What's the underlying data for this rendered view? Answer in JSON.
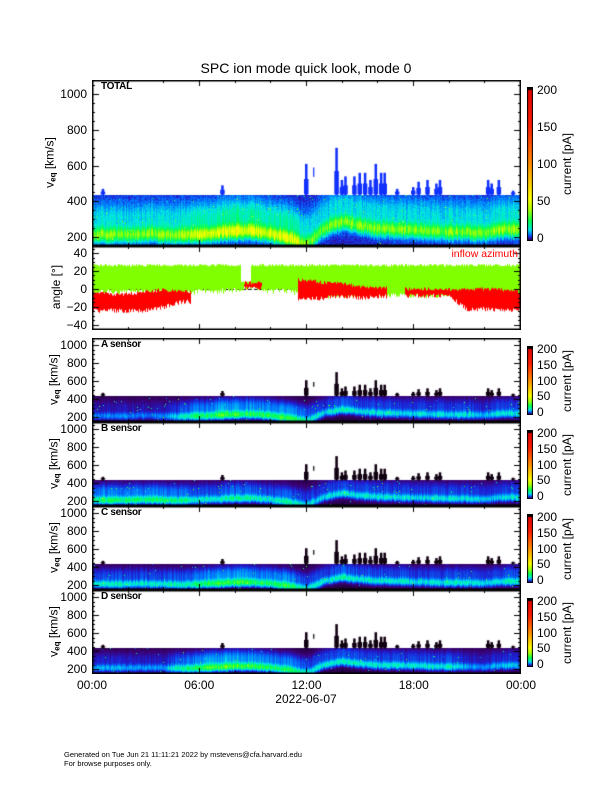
{
  "title": "SPC ion mode quick look, mode 0",
  "footer": {
    "line1": "Generated on Tue Jun 21 11:11:21 2022 by mstevens@cfa.harvard.edu",
    "line2": "For browse purposes only."
  },
  "colors": {
    "inflow_azimuth": "#ff0000",
    "second_angle": "#80ff00",
    "spikes_total": "#1030ff"
  },
  "chart_data": {
    "type": "heatmap",
    "x_axis": {
      "ticks": [
        "00:00",
        "06:00",
        "12:00",
        "18:00",
        "00:00"
      ],
      "tick_hours": [
        0,
        6,
        12,
        18,
        24
      ],
      "label": "2022-06-07",
      "range_hours": [
        0,
        24
      ]
    },
    "colorbar": {
      "label": "current [pA]",
      "ticks": [
        "0",
        "50",
        "100",
        "150",
        "200"
      ],
      "range": [
        0,
        200
      ]
    },
    "velocity_axis": {
      "label_main": "v",
      "label_sub": "eq",
      "label_unit": "[km/s]",
      "ticks": [
        "200",
        "400",
        "600",
        "800",
        "1000"
      ],
      "tick_values": [
        200,
        400,
        600,
        800,
        1000
      ]
    },
    "panels": [
      {
        "id": "total",
        "label": "TOTAL",
        "ylim": [
          150,
          1080
        ],
        "gain": [
          1,
          1,
          1,
          1,
          1,
          1,
          1,
          1,
          1,
          1,
          1,
          1,
          1,
          1,
          1,
          1,
          1,
          1,
          1,
          1,
          1,
          1,
          1,
          1,
          1
        ],
        "background": 4
      },
      {
        "id": "a",
        "label": "A sensor",
        "ylim": [
          145,
          1080
        ],
        "gain": [
          0.25,
          0.25,
          0.25,
          0.25,
          0.25,
          0.45,
          0.55,
          0.6,
          0.6,
          0.55,
          0.55,
          0.55,
          0.5,
          0.45,
          0.5,
          0.45,
          0.45,
          0.45,
          0.45,
          0.45,
          0.45,
          0.45,
          0.4,
          0.45,
          0.45
        ],
        "background": 0.6
      },
      {
        "id": "b",
        "label": "B sensor",
        "ylim": [
          145,
          1080
        ],
        "gain": [
          0.7,
          0.7,
          0.7,
          0.7,
          0.7,
          0.6,
          0.35,
          0.35,
          0.4,
          0.4,
          0.35,
          0.35,
          0.4,
          0.45,
          0.45,
          0.45,
          0.45,
          0.45,
          0.45,
          0.45,
          0.45,
          0.45,
          0.35,
          0.4,
          0.45
        ],
        "background": 0.8
      },
      {
        "id": "c",
        "label": "C sensor",
        "ylim": [
          145,
          1080
        ],
        "gain": [
          0.5,
          0.5,
          0.5,
          0.5,
          0.5,
          0.5,
          0.55,
          0.6,
          0.6,
          0.55,
          0.55,
          0.55,
          0.45,
          0.5,
          0.55,
          0.5,
          0.5,
          0.5,
          0.5,
          0.5,
          0.5,
          0.5,
          0.45,
          0.5,
          0.5
        ],
        "background": 0.6
      },
      {
        "id": "d",
        "label": "D sensor",
        "ylim": [
          145,
          1080
        ],
        "gain": [
          0.3,
          0.3,
          0.3,
          0.3,
          0.3,
          0.55,
          0.6,
          0.65,
          0.65,
          0.6,
          0.55,
          0.55,
          0.45,
          0.5,
          0.5,
          0.5,
          0.5,
          0.5,
          0.5,
          0.5,
          0.5,
          0.3,
          0.3,
          0.35,
          0.35
        ],
        "background": 0.6
      }
    ],
    "band_top_kms": 440,
    "core_velocity_kms_hourly": [
      215,
      215,
      215,
      220,
      215,
      210,
      215,
      225,
      235,
      235,
      220,
      195,
      160,
      250,
      290,
      265,
      250,
      245,
      240,
      235,
      230,
      230,
      225,
      245,
      240
    ],
    "peak_current_pA_hourly": [
      30,
      30,
      28,
      28,
      30,
      32,
      38,
      42,
      44,
      42,
      40,
      45,
      30,
      25,
      30,
      28,
      28,
      28,
      26,
      26,
      28,
      28,
      26,
      30,
      30
    ],
    "spikes": [
      [
        0.6,
        470
      ],
      [
        7.3,
        490
      ],
      [
        12.0,
        610
      ],
      [
        12.4,
        590
      ],
      [
        13.7,
        700
      ],
      [
        14.0,
        520
      ],
      [
        14.2,
        540
      ],
      [
        14.7,
        540
      ],
      [
        15.0,
        560
      ],
      [
        15.3,
        560
      ],
      [
        15.6,
        520
      ],
      [
        15.9,
        610
      ],
      [
        16.2,
        560
      ],
      [
        16.4,
        560
      ],
      [
        17.1,
        470
      ],
      [
        18.0,
        480
      ],
      [
        18.3,
        510
      ],
      [
        18.8,
        520
      ],
      [
        19.3,
        500
      ],
      [
        19.5,
        520
      ],
      [
        22.2,
        520
      ],
      [
        22.4,
        500
      ],
      [
        22.8,
        520
      ],
      [
        23.6,
        460
      ]
    ],
    "angle_panel": {
      "type": "area",
      "ylabel": "angle [°]",
      "ylim": [
        -46,
        48
      ],
      "ticks": [
        "40",
        "20",
        "0",
        "−20",
        "−40"
      ],
      "tick_values": [
        40,
        20,
        0,
        -20,
        -40
      ],
      "legend": "inflow azimuth",
      "green_top_deg": 28,
      "green_gap_hours": [
        8.3,
        8.9
      ],
      "green_bottom_deg_hourly": [
        0,
        0,
        0,
        0,
        0,
        -2,
        0,
        0,
        2,
        5,
        0,
        0,
        -3,
        -5,
        -5,
        -3,
        -5,
        -3,
        -5,
        -5,
        -3,
        -5,
        -8,
        -8,
        -8
      ],
      "red_top_deg_hourly": [
        -5,
        -8,
        -8,
        -5,
        -3,
        -5,
        null,
        null,
        null,
        5,
        null,
        null,
        8,
        5,
        5,
        0,
        0,
        null,
        -2,
        -2,
        -3,
        -2,
        -2,
        -3,
        -5
      ],
      "red_bottom_deg_hourly": [
        -22,
        -22,
        -22,
        -22,
        -18,
        -12,
        null,
        null,
        null,
        3,
        null,
        null,
        -8,
        -8,
        -5,
        -8,
        -6,
        null,
        -5,
        -5,
        -5,
        -20,
        -20,
        -22,
        -20
      ]
    }
  }
}
